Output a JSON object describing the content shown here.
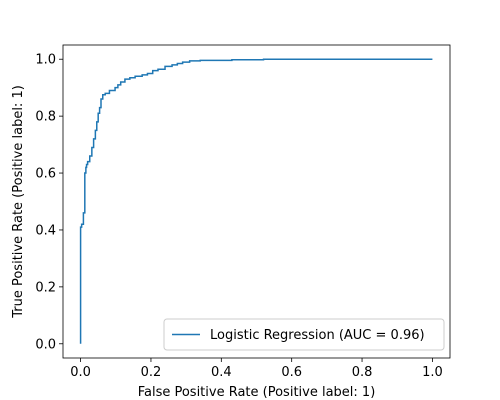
{
  "chart_data": {
    "type": "line",
    "title": "",
    "xlabel": "False Positive Rate (Positive label: 1)",
    "ylabel": "True Positive Rate (Positive label: 1)",
    "xlim": [
      -0.05,
      1.05
    ],
    "ylim": [
      -0.05,
      1.05
    ],
    "xticks": [
      "0.0",
      "0.2",
      "0.4",
      "0.6",
      "0.8",
      "1.0"
    ],
    "yticks": [
      "0.0",
      "0.2",
      "0.4",
      "0.6",
      "0.8",
      "1.0"
    ],
    "grid": false,
    "legend_position": "lower-right",
    "series": [
      {
        "name": "Logistic Regression (AUC = 0.96)",
        "color": "#1f77b4",
        "x": [
          0.0,
          0.0,
          0.003,
          0.003,
          0.008,
          0.008,
          0.012,
          0.012,
          0.015,
          0.015,
          0.017,
          0.017,
          0.02,
          0.02,
          0.026,
          0.026,
          0.032,
          0.032,
          0.037,
          0.037,
          0.042,
          0.042,
          0.046,
          0.046,
          0.05,
          0.05,
          0.054,
          0.054,
          0.058,
          0.058,
          0.063,
          0.063,
          0.07,
          0.07,
          0.082,
          0.082,
          0.098,
          0.098,
          0.106,
          0.106,
          0.114,
          0.114,
          0.126,
          0.126,
          0.14,
          0.14,
          0.155,
          0.155,
          0.175,
          0.175,
          0.19,
          0.19,
          0.205,
          0.205,
          0.22,
          0.22,
          0.24,
          0.24,
          0.26,
          0.26,
          0.275,
          0.275,
          0.29,
          0.29,
          0.31,
          0.31,
          0.34,
          0.34,
          0.43,
          0.43,
          0.52,
          0.52,
          1.0
        ],
        "y": [
          0.0,
          0.41,
          0.41,
          0.42,
          0.42,
          0.46,
          0.46,
          0.6,
          0.6,
          0.62,
          0.62,
          0.63,
          0.63,
          0.64,
          0.64,
          0.66,
          0.66,
          0.69,
          0.69,
          0.72,
          0.72,
          0.75,
          0.75,
          0.78,
          0.78,
          0.81,
          0.81,
          0.83,
          0.83,
          0.86,
          0.86,
          0.875,
          0.875,
          0.88,
          0.88,
          0.89,
          0.89,
          0.9,
          0.9,
          0.91,
          0.91,
          0.92,
          0.92,
          0.93,
          0.93,
          0.935,
          0.935,
          0.94,
          0.94,
          0.945,
          0.945,
          0.95,
          0.95,
          0.96,
          0.96,
          0.965,
          0.965,
          0.975,
          0.975,
          0.98,
          0.98,
          0.985,
          0.985,
          0.99,
          0.99,
          0.994,
          0.994,
          0.996,
          0.996,
          0.998,
          0.998,
          1.0,
          1.0
        ]
      }
    ]
  }
}
